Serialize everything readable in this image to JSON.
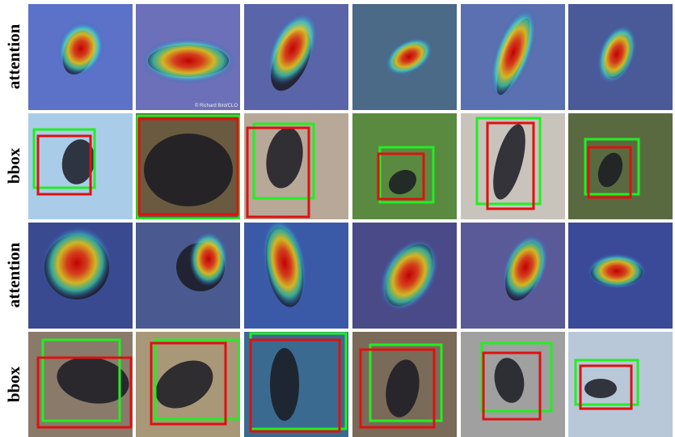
{
  "rows": [
    {
      "label": "attention"
    },
    {
      "label": "bbox"
    },
    {
      "label": "attention"
    },
    {
      "label": "bbox"
    }
  ],
  "watermark": "© Richard Bird/CLO"
}
